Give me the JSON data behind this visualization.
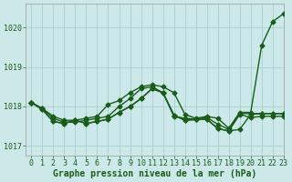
{
  "title": "Graphe pression niveau de la mer (hPa)",
  "background_color": "#cce8e8",
  "grid_color": "#aad0d0",
  "line_color": "#1a5c1a",
  "xlim": [
    -0.5,
    23
  ],
  "ylim": [
    1016.75,
    1020.6
  ],
  "yticks": [
    1017,
    1018,
    1019,
    1020
  ],
  "xticks": [
    0,
    1,
    2,
    3,
    4,
    5,
    6,
    7,
    8,
    9,
    10,
    11,
    12,
    13,
    14,
    15,
    16,
    17,
    18,
    19,
    20,
    21,
    22,
    23
  ],
  "series": [
    [
      1018.1,
      1017.95,
      1017.75,
      1017.65,
      1017.65,
      1017.7,
      1017.75,
      1018.05,
      1018.15,
      1018.35,
      1018.5,
      1018.55,
      1018.5,
      1018.35,
      1017.8,
      1017.7,
      1017.75,
      1017.7,
      1017.45,
      1017.85,
      1017.85,
      1019.55,
      1020.15,
      1020.35
    ],
    [
      1018.1,
      1017.95,
      1017.7,
      1017.6,
      1017.6,
      1017.65,
      1017.7,
      1017.75,
      1018.0,
      1018.2,
      1018.45,
      1018.5,
      1018.35,
      1017.75,
      1017.7,
      1017.68,
      1017.72,
      1017.55,
      1017.42,
      1017.82,
      1017.82,
      1017.82,
      1017.82,
      1017.82
    ],
    [
      1018.1,
      1017.92,
      1017.62,
      1017.57,
      1017.65,
      1017.57,
      1017.62,
      1017.68,
      1017.85,
      1018.0,
      1018.2,
      1018.45,
      1018.35,
      1017.78,
      1017.65,
      1017.67,
      1017.68,
      1017.44,
      1017.38,
      1017.42,
      1017.8,
      1017.82,
      1017.82,
      1017.82
    ],
    [
      1018.1,
      1017.92,
      1017.62,
      1017.57,
      1017.65,
      1017.57,
      1017.62,
      1017.68,
      1017.85,
      1018.0,
      1018.2,
      1018.45,
      1018.35,
      1017.78,
      1017.65,
      1017.67,
      1017.68,
      1017.44,
      1017.38,
      1017.8,
      1017.72,
      1017.75,
      1017.75,
      1017.75
    ]
  ],
  "marker": "D",
  "markersize": 2.5,
  "linewidth": 1.0,
  "xlabel_fontsize": 7,
  "tick_fontsize": 6
}
